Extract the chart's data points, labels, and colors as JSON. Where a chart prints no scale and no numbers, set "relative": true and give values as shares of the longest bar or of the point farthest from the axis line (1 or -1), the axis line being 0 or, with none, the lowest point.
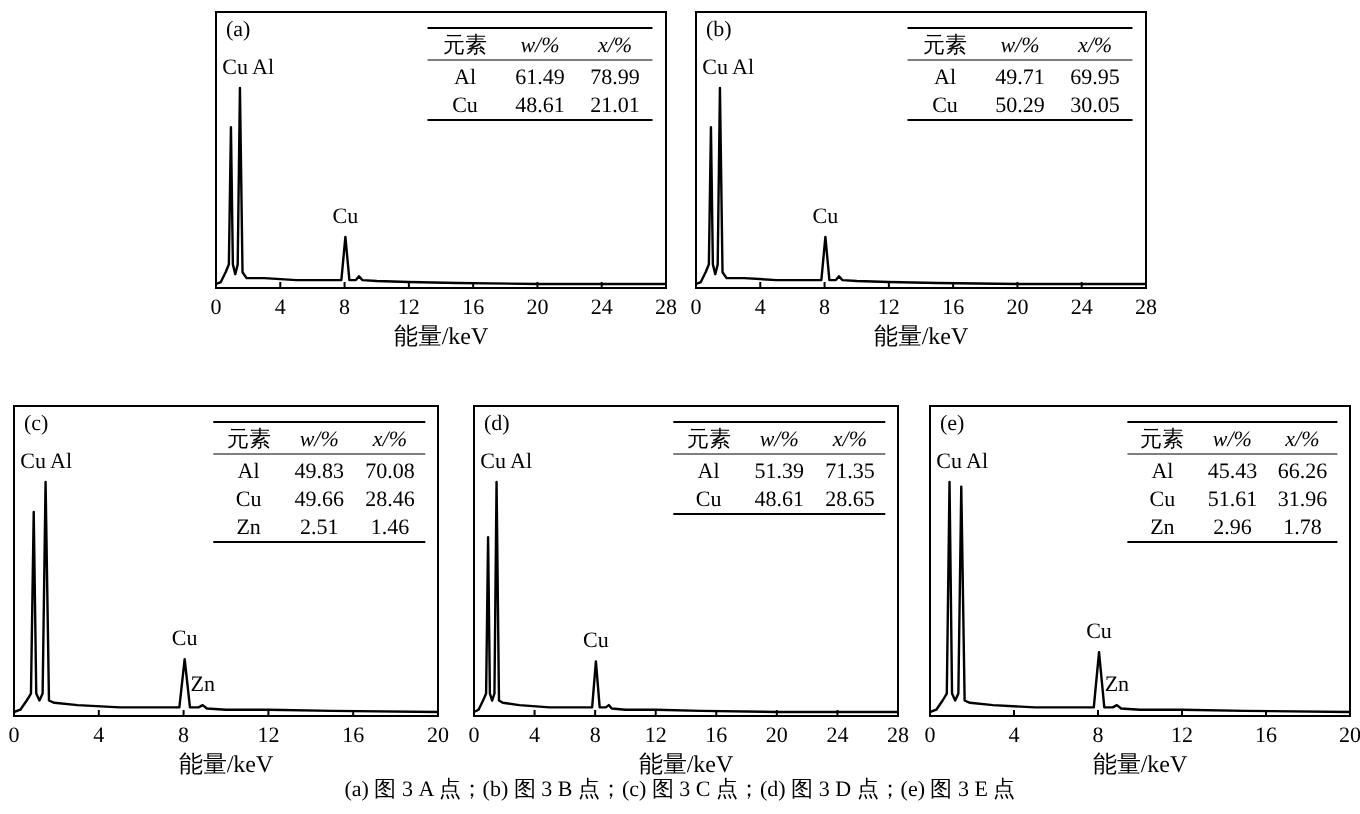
{
  "chart_data": [
    {
      "type": "line",
      "title": "(a)",
      "relative": true,
      "xlabel": "能量/keV",
      "xlim": [
        0,
        28
      ],
      "xticks": [
        0,
        4,
        8,
        12,
        16,
        20,
        24,
        28
      ],
      "series": [
        {
          "color": "#000000",
          "x": [
            0,
            0.3,
            0.6,
            0.8,
            0.93,
            1.05,
            1.2,
            1.35,
            1.49,
            1.65,
            1.9,
            3,
            5,
            7.8,
            8.05,
            8.3,
            8.7,
            8.9,
            9.1,
            10,
            12,
            15,
            20,
            28
          ],
          "values": [
            0,
            0.01,
            0.06,
            0.1,
            0.8,
            0.1,
            0.05,
            0.1,
            1,
            0.06,
            0.03,
            0.03,
            0.02,
            0.02,
            0.24,
            0.02,
            0.02,
            0.04,
            0.02,
            0.015,
            0.01,
            0.005,
            0,
            0
          ]
        }
      ],
      "annotations": [
        "元素",
        "w/%",
        "x/%",
        "Al",
        "61.49",
        "78.99",
        "Cu",
        "48.61",
        "21.01",
        {
          "text": "Cu",
          "x": 0.93,
          "y": 0.8
        },
        {
          "text": "Al",
          "x": 1.49,
          "y": 1
        },
        {
          "text": "Cu",
          "x": 8.05,
          "y": 0.24
        }
      ]
    },
    {
      "type": "line",
      "title": "(b)",
      "relative": true,
      "xlabel": "能量/keV",
      "xlim": [
        0,
        28
      ],
      "xticks": [
        0,
        4,
        8,
        12,
        16,
        20,
        24,
        28
      ],
      "series": [
        {
          "color": "#000000",
          "x": [
            0,
            0.3,
            0.6,
            0.8,
            0.93,
            1.05,
            1.2,
            1.35,
            1.49,
            1.65,
            1.9,
            3,
            5,
            7.8,
            8.05,
            8.3,
            8.7,
            8.9,
            9.1,
            10,
            12,
            15,
            20,
            28
          ],
          "values": [
            0,
            0.01,
            0.06,
            0.1,
            0.8,
            0.1,
            0.05,
            0.1,
            1,
            0.06,
            0.03,
            0.03,
            0.02,
            0.02,
            0.24,
            0.02,
            0.02,
            0.04,
            0.02,
            0.015,
            0.01,
            0.005,
            0,
            0
          ]
        }
      ],
      "annotations": [
        "元素",
        "w/%",
        "x/%",
        "Al",
        "49.71",
        "69.95",
        "Cu",
        "50.29",
        "30.05",
        {
          "text": "Cu",
          "x": 0.93,
          "y": 0.8
        },
        {
          "text": "Al",
          "x": 1.49,
          "y": 1
        },
        {
          "text": "Cu",
          "x": 8.05,
          "y": 0.24
        }
      ]
    },
    {
      "type": "line",
      "title": "(c)",
      "relative": true,
      "xlabel": "能量/keV",
      "xlim": [
        0,
        20
      ],
      "xticks": [
        0,
        4,
        8,
        12,
        16,
        20
      ],
      "series": [
        {
          "color": "#000000",
          "x": [
            0,
            0.3,
            0.6,
            0.8,
            0.93,
            1.05,
            1.2,
            1.35,
            1.49,
            1.65,
            1.9,
            3,
            5,
            7.8,
            8.05,
            8.3,
            8.7,
            8.9,
            9.1,
            10,
            12,
            15,
            20
          ],
          "values": [
            0,
            0.01,
            0.05,
            0.08,
            0.87,
            0.08,
            0.05,
            0.08,
            1,
            0.05,
            0.04,
            0.03,
            0.02,
            0.02,
            0.23,
            0.02,
            0.02,
            0.03,
            0.015,
            0.01,
            0.01,
            0.005,
            0
          ]
        }
      ],
      "annotations": [
        "元素",
        "w/%",
        "x/%",
        "Al",
        "49.83",
        "70.08",
        "Cu",
        "49.66",
        "28.46",
        "Zn",
        "2.51",
        "1.46",
        {
          "text": "Cu",
          "x": 0.93,
          "y": 0.87
        },
        {
          "text": "Al",
          "x": 1.49,
          "y": 1
        },
        {
          "text": "Cu",
          "x": 8.05,
          "y": 0.23
        },
        {
          "text": "Zn",
          "x": 8.9,
          "y": 0.03
        }
      ]
    },
    {
      "type": "line",
      "title": "(d)",
      "relative": true,
      "xlabel": "能量/keV",
      "xlim": [
        0,
        28
      ],
      "xticks": [
        0,
        4,
        8,
        12,
        16,
        20,
        24,
        28
      ],
      "series": [
        {
          "color": "#000000",
          "x": [
            0,
            0.3,
            0.6,
            0.8,
            0.93,
            1.05,
            1.2,
            1.35,
            1.49,
            1.65,
            1.9,
            3,
            5,
            7.8,
            8.05,
            8.3,
            8.7,
            8.9,
            9.1,
            10,
            12,
            15,
            20,
            28
          ],
          "values": [
            0,
            0.01,
            0.05,
            0.08,
            0.76,
            0.08,
            0.05,
            0.08,
            1,
            0.05,
            0.04,
            0.03,
            0.02,
            0.02,
            0.22,
            0.02,
            0.02,
            0.03,
            0.015,
            0.01,
            0.01,
            0.005,
            0,
            0
          ]
        }
      ],
      "annotations": [
        "元素",
        "w/%",
        "x/%",
        "Al",
        "51.39",
        "71.35",
        "Cu",
        "48.61",
        "28.65",
        {
          "text": "Cu",
          "x": 0.93,
          "y": 0.76
        },
        {
          "text": "Al",
          "x": 1.49,
          "y": 1
        },
        {
          "text": "Cu",
          "x": 8.05,
          "y": 0.22
        }
      ]
    },
    {
      "type": "line",
      "title": "(e)",
      "relative": true,
      "xlabel": "能量/keV",
      "xlim": [
        0,
        20
      ],
      "xticks": [
        0,
        4,
        8,
        12,
        16,
        20
      ],
      "series": [
        {
          "color": "#000000",
          "x": [
            0,
            0.3,
            0.6,
            0.8,
            0.93,
            1.05,
            1.2,
            1.35,
            1.49,
            1.65,
            1.9,
            3,
            5,
            7.8,
            8.05,
            8.3,
            8.7,
            8.9,
            9.1,
            10,
            12,
            15,
            20
          ],
          "values": [
            0,
            0.01,
            0.05,
            0.08,
            1,
            0.08,
            0.05,
            0.08,
            0.98,
            0.05,
            0.04,
            0.03,
            0.02,
            0.02,
            0.26,
            0.02,
            0.02,
            0.03,
            0.015,
            0.01,
            0.01,
            0.005,
            0
          ]
        }
      ],
      "annotations": [
        "元素",
        "w/%",
        "x/%",
        "Al",
        "45.43",
        "66.26",
        "Cu",
        "51.61",
        "31.96",
        "Zn",
        "2.96",
        "1.78",
        {
          "text": "Cu",
          "x": 0.93,
          "y": 1
        },
        {
          "text": "Al",
          "x": 1.49,
          "y": 0.98
        },
        {
          "text": "Cu",
          "x": 8.05,
          "y": 0.26
        },
        {
          "text": "Zn",
          "x": 8.9,
          "y": 0.03
        }
      ]
    },
    {
      "type": "other",
      "annotations": [
        "(a) 图 3 A 点；(b) 图 3 B 点；(c) 图 3 C 点；(d) 图 3 D 点；(e) 图 3 E 点"
      ]
    }
  ]
}
